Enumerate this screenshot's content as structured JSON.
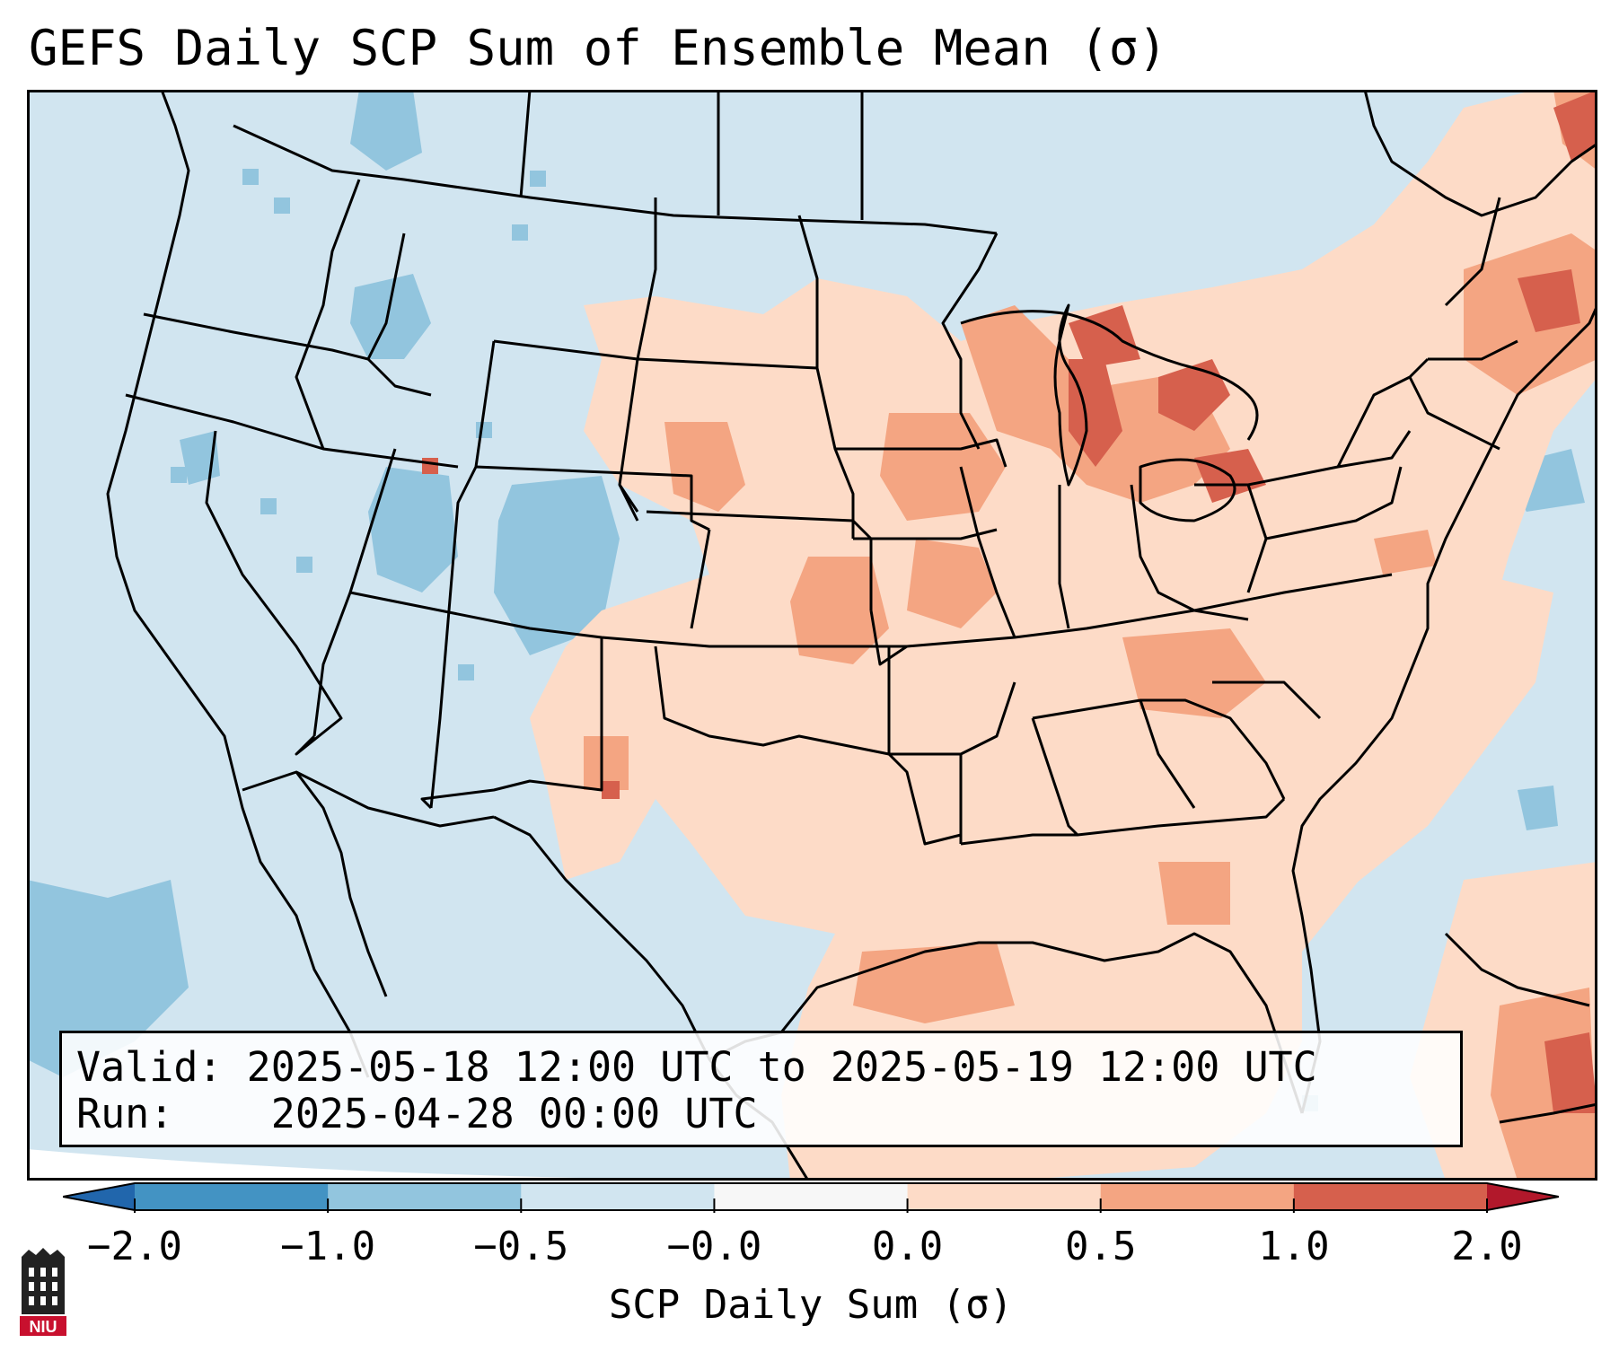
{
  "title": "GEFS Daily SCP Sum of Ensemble Mean (σ)",
  "info": {
    "valid_label": "Valid:",
    "valid_value": "2025-05-18 12:00 UTC to 2025-05-19 12:00 UTC",
    "run_label": "Run:",
    "run_value": "2025-04-28 00:00 UTC"
  },
  "colorbar": {
    "label": "SCP Daily Sum (σ)",
    "ticks": [
      "−2.0",
      "−1.0",
      "−0.5",
      "−0.0",
      "0.0",
      "0.5",
      "1.0",
      "2.0"
    ],
    "colors": [
      "#4393c3",
      "#92c5de",
      "#d1e5f0",
      "#f7f7f7",
      "#fddbc7",
      "#f4a582",
      "#d6604d"
    ],
    "extend_low_color": "#2166ac",
    "extend_high_color": "#b2182b"
  },
  "map": {
    "background_color": "#d1e5f0",
    "line_color": "#000000"
  },
  "logo": {
    "text": "NIU",
    "icon": "niu-logo-icon"
  }
}
